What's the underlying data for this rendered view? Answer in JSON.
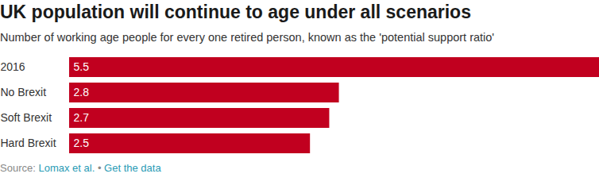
{
  "chart_data": {
    "type": "bar",
    "title": "UK population will continue to age under all scenarios",
    "subtitle": "Number of working age people for every one retired person, known as the 'potential support ratio'",
    "categories": [
      "2016",
      "No Brexit",
      "Soft Brexit",
      "Hard Brexit"
    ],
    "values": [
      5.5,
      2.8,
      2.7,
      2.5
    ],
    "color": "#c1001f",
    "orientation": "horizontal",
    "data_labels": true,
    "xlim": [
      0,
      5.5
    ],
    "tick_labels": "y",
    "source": [
      "Source:",
      "Lomax et al.",
      "•",
      "Get the data"
    ]
  }
}
